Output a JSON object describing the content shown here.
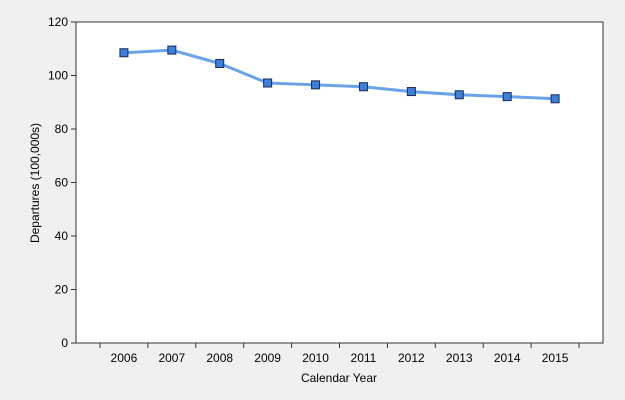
{
  "chart_data": {
    "type": "line",
    "title": "",
    "xlabel": "Calendar Year",
    "ylabel": "Departures (100,000s)",
    "categories": [
      "2006",
      "2007",
      "2008",
      "2009",
      "2010",
      "2011",
      "2012",
      "2013",
      "2014",
      "2015"
    ],
    "y_ticks": [
      "0",
      "20",
      "40",
      "60",
      "80",
      "100",
      "120"
    ],
    "ylim": [
      0,
      120
    ],
    "grid": false,
    "legend": "none",
    "series": [
      {
        "values": [
          108.5,
          109.5,
          104.5,
          97.2,
          96.5,
          95.8,
          94.0,
          92.8,
          92.1,
          91.3
        ],
        "line_color": "#6aa3ec",
        "marker_fill": "#3a80dd",
        "marker_edge": "#1a2a55"
      }
    ]
  }
}
